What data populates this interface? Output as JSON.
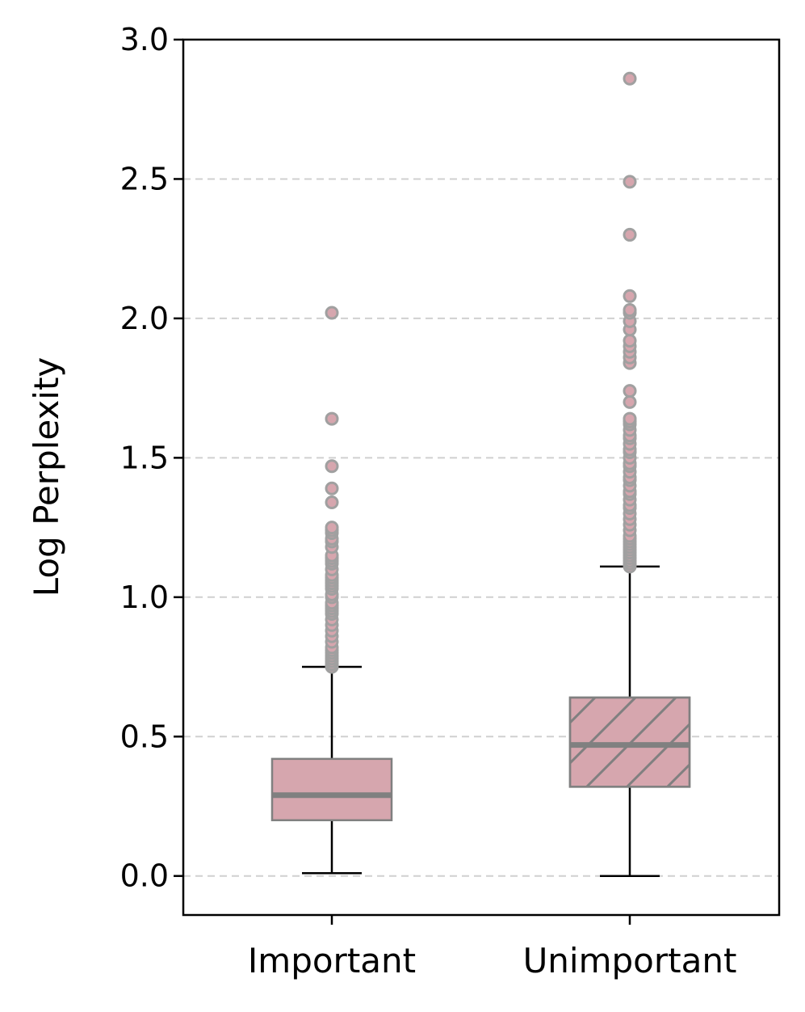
{
  "chart_data": {
    "type": "boxplot",
    "ylabel": "Log Perplexity",
    "xlabel": "",
    "ylim": [
      -0.14,
      3.0
    ],
    "yticks": [
      "0.0",
      "0.5",
      "1.0",
      "1.5",
      "2.0",
      "2.5",
      "3.0"
    ],
    "grid": "horizontal dashed",
    "categories": [
      "Important",
      "Unimportant"
    ],
    "boxes": [
      {
        "label": "Important",
        "whisker_low": 0.01,
        "q1": 0.2,
        "median": 0.29,
        "q3": 0.42,
        "whisker_high": 0.75,
        "hatch": false,
        "outliers": [
          0.75,
          0.76,
          0.77,
          0.78,
          0.79,
          0.8,
          0.81,
          0.82,
          0.84,
          0.86,
          0.88,
          0.9,
          0.92,
          0.94,
          0.95,
          0.96,
          0.97,
          0.98,
          1.0,
          1.01,
          1.03,
          1.04,
          1.05,
          1.06,
          1.07,
          1.08,
          1.1,
          1.12,
          1.13,
          1.14,
          1.15,
          1.18,
          1.2,
          1.21,
          1.23,
          1.24,
          1.25,
          1.34,
          1.39,
          1.47,
          1.64,
          2.02
        ]
      },
      {
        "label": "Unimportant",
        "whisker_low": 0.0,
        "q1": 0.32,
        "median": 0.47,
        "q3": 0.64,
        "whisker_high": 1.11,
        "hatch": true,
        "outliers": [
          1.11,
          1.12,
          1.13,
          1.14,
          1.15,
          1.16,
          1.17,
          1.18,
          1.19,
          1.2,
          1.21,
          1.22,
          1.24,
          1.26,
          1.28,
          1.3,
          1.32,
          1.33,
          1.35,
          1.37,
          1.38,
          1.4,
          1.42,
          1.43,
          1.45,
          1.47,
          1.48,
          1.5,
          1.52,
          1.53,
          1.55,
          1.57,
          1.58,
          1.6,
          1.62,
          1.63,
          1.64,
          1.7,
          1.74,
          1.84,
          1.86,
          1.88,
          1.9,
          1.92,
          1.96,
          1.99,
          2.02,
          2.03,
          2.08,
          2.3,
          2.49,
          2.86
        ]
      }
    ],
    "colors": {
      "box_fill": "#d6a6ae",
      "box_edge": "#808080",
      "median": "#808080",
      "hatch": "#808080",
      "whisker": "#000000",
      "outlier_fill": "#d6a6ae",
      "outlier_edge": "#a0a0a0",
      "grid": "#d0d0d0"
    }
  }
}
